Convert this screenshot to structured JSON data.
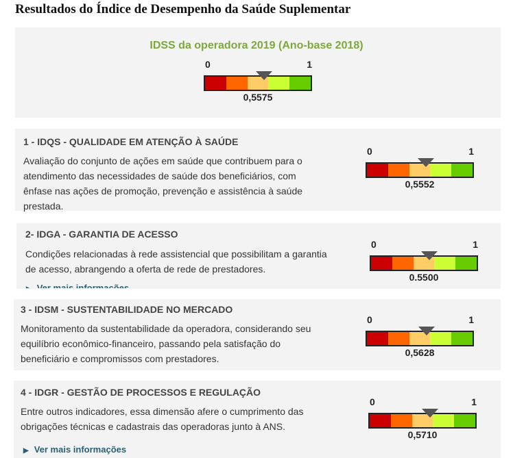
{
  "page_title": "Resultados do Índice de Desempenho da Saúde Suplementar",
  "colors": {
    "red": "#cc0000",
    "orange": "#ff6600",
    "yellow": "#ffcc66",
    "lime": "#ccff33",
    "green": "#66cc00",
    "title_green": "#7ca83c"
  },
  "main": {
    "title": "IDSS da operadora 2019 (Ano-base 2018)",
    "gauge": {
      "min_label": "0",
      "max_label": "1",
      "value": 0.5575,
      "value_label": "0,5575"
    }
  },
  "cards": [
    {
      "title": "1 - IDQS - QUALIDADE EM ATENÇÃO À SAÚDE",
      "description": "Avaliação do conjunto de ações em saúde que contribuem para o atendimento das necessidades de saúde dos beneficiários, com ênfase nas ações de promoção, prevenção e assistência à saúde prestada.",
      "gauge": {
        "min_label": "0",
        "max_label": "1",
        "value": 0.5552,
        "value_label": "0,5552"
      }
    },
    {
      "title": "2- IDGA - GARANTIA DE ACESSO",
      "description": "Condições relacionadas à rede assistencial que possibilitam a garantia de acesso, abrangendo a oferta de rede de prestadores.",
      "more_link": "Ver mais informações",
      "gauge": {
        "min_label": "0",
        "max_label": "1",
        "value": 0.55,
        "value_label": "0.5500"
      }
    },
    {
      "title": "3 - IDSM - SUSTENTABILIDADE NO MERCADO",
      "description": "Monitoramento da sustentabilidade da operadora, considerando seu equilíbrio econômico-financeiro, passando pela satisfação do beneficiário e compromissos com prestadores.",
      "gauge": {
        "min_label": "0",
        "max_label": "1",
        "value": 0.5628,
        "value_label": "0,5628"
      }
    },
    {
      "title": "4 - IDGR - GESTÃO DE PROCESSOS E REGULAÇÃO",
      "description": "Entre outros indicadores, essa dimensão afere o cumprimento das obrigações técnicas e cadastrais das operadoras junto à ANS.",
      "more_link": "Ver mais informações",
      "gauge": {
        "min_label": "0",
        "max_label": "1",
        "value": 0.571,
        "value_label": "0,5710"
      }
    }
  ]
}
